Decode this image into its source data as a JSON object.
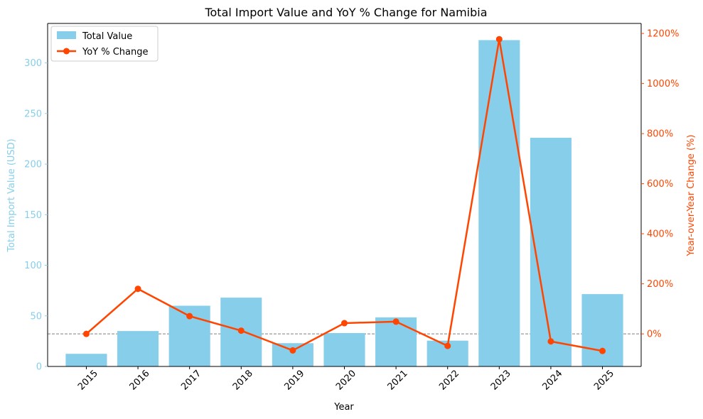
{
  "chart_data": {
    "type": "bar",
    "title": "Total Import Value and YoY % Change for Namibia",
    "xlabel": "Year",
    "ylabel_left": "Total Import Value (USD)",
    "ylabel_right": "Year-over-Year Change (%)",
    "categories": [
      "2015",
      "2016",
      "2017",
      "2018",
      "2019",
      "2020",
      "2021",
      "2022",
      "2023",
      "2024",
      "2025"
    ],
    "series": [
      {
        "name": "Total Value",
        "type": "bar",
        "axis": "left",
        "color": "#87ceeb",
        "values": [
          12.5,
          35,
          60,
          68,
          23,
          33,
          48.5,
          25.5,
          322.5,
          226,
          71.5
        ]
      },
      {
        "name": "YoY % Change",
        "type": "line",
        "axis": "right",
        "color": "#ff4500",
        "values": [
          0,
          180,
          71,
          13,
          -66,
          43,
          49,
          -48,
          1177,
          -30,
          -68
        ]
      }
    ],
    "ylim_left": [
      0,
      339
    ],
    "yticks_left": [
      0,
      50,
      100,
      150,
      200,
      250,
      300
    ],
    "ylim_right": [
      -130,
      1240
    ],
    "yticks_right": [
      0,
      200,
      400,
      600,
      800,
      1000,
      1200
    ],
    "yticklabels_right": [
      "0%",
      "200%",
      "400%",
      "600%",
      "800%",
      "1000%",
      "1200%"
    ],
    "reference_line": {
      "axis": "right",
      "value": 0,
      "style": "dashed",
      "color": "#808080"
    },
    "legend_position": "top-left",
    "left_axis_color": "#87ceeb",
    "right_axis_color": "#ff4500"
  }
}
